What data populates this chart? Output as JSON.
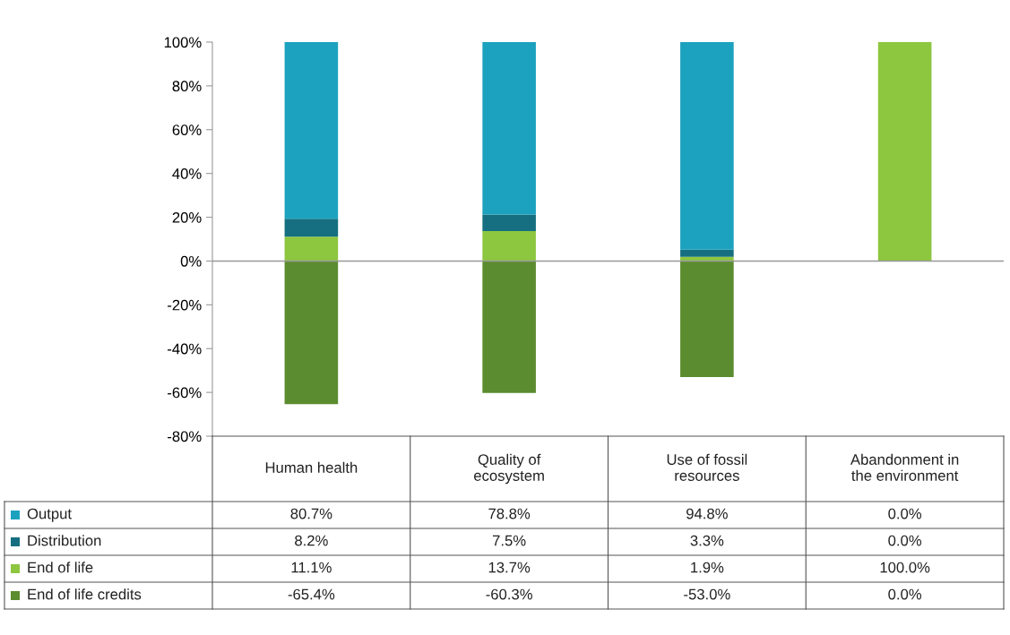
{
  "chart_data": {
    "type": "bar",
    "stacked": true,
    "categories": [
      "Human health",
      "Quality of ecosystem",
      "Use of fossil resources",
      "Abandonment in the environment"
    ],
    "series": [
      {
        "name": "End of life",
        "color": "#8dc63f",
        "values": [
          11.1,
          13.7,
          1.9,
          100.0
        ],
        "value_labels": [
          "11.1%",
          "13.7%",
          "1.9%",
          "100.0%"
        ]
      },
      {
        "name": "Distribution",
        "color": "#156f80",
        "values": [
          8.2,
          7.5,
          3.3,
          0.0
        ],
        "value_labels": [
          "8.2%",
          "7.5%",
          "3.3%",
          "0.0%"
        ]
      },
      {
        "name": "Output",
        "color": "#1ca2bf",
        "values": [
          80.7,
          78.8,
          94.8,
          0.0
        ],
        "value_labels": [
          "80.7%",
          "78.8%",
          "94.8%",
          "0.0%"
        ]
      },
      {
        "name": "End of life credits",
        "color": "#5b8c2f",
        "values": [
          -65.4,
          -60.3,
          -53.0,
          0.0
        ],
        "value_labels": [
          "-65.4%",
          "-60.3%",
          "-53.0%",
          "0.0%"
        ]
      }
    ],
    "ylim": [
      -80,
      100
    ],
    "yticks": [
      {
        "value": -80,
        "label": "-80%"
      },
      {
        "value": -60,
        "label": "-60%"
      },
      {
        "value": -40,
        "label": "-40%"
      },
      {
        "value": -20,
        "label": "-20%"
      },
      {
        "value": 0,
        "label": "0%"
      },
      {
        "value": 20,
        "label": "20%"
      },
      {
        "value": 40,
        "label": "40%"
      },
      {
        "value": 60,
        "label": "60%"
      },
      {
        "value": 80,
        "label": "80%"
      },
      {
        "value": 100,
        "label": "100%"
      }
    ],
    "legend": "bottom left"
  }
}
